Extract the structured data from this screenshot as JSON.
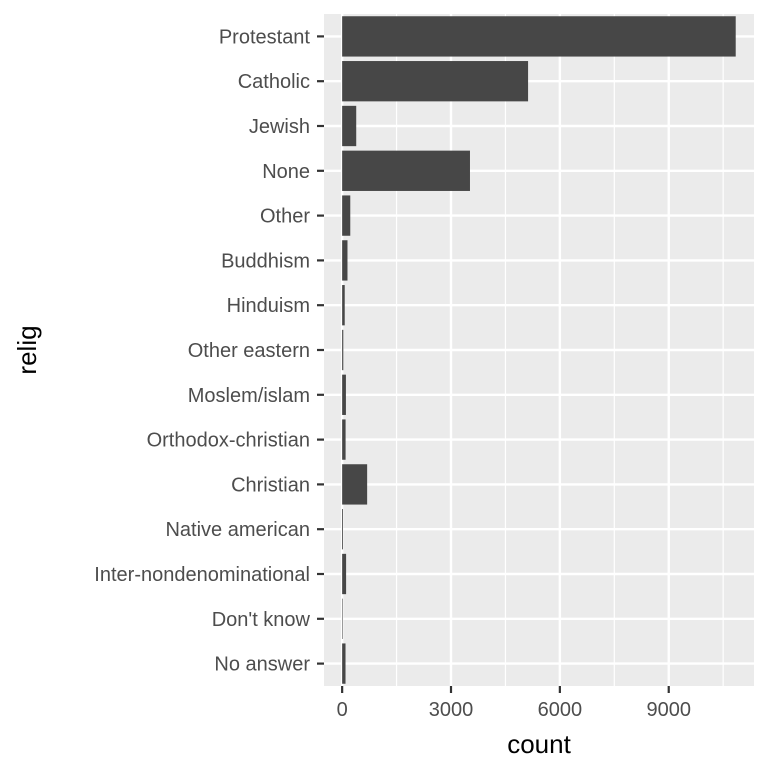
{
  "chart_data": {
    "type": "bar",
    "orientation": "horizontal",
    "categories": [
      "Protestant",
      "Catholic",
      "Jewish",
      "None",
      "Other",
      "Buddhism",
      "Hinduism",
      "Other eastern",
      "Moslem/islam",
      "Orthodox-christian",
      "Christian",
      "Native american",
      "Inter-nondenominational",
      "Don't know",
      "No answer"
    ],
    "values": [
      10846,
      5124,
      388,
      3523,
      224,
      147,
      71,
      32,
      104,
      95,
      689,
      23,
      109,
      15,
      93
    ],
    "xlabel": "count",
    "ylabel": "relig",
    "xlim": [
      -500,
      11350
    ],
    "xticks": [
      0,
      3000,
      6000,
      9000
    ],
    "xtick_labels": [
      "0",
      "3000",
      "6000",
      "9000"
    ],
    "grid": true,
    "colors": {
      "bar": "#474747",
      "panel": "#ebebeb",
      "grid": "#ffffff"
    }
  }
}
